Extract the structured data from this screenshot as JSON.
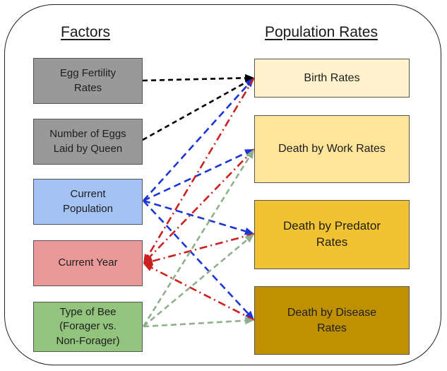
{
  "headings": {
    "factors": "Factors",
    "rates": "Population Rates"
  },
  "factors": [
    {
      "id": "egg",
      "text": "Egg Fertility\nRates",
      "color": "#999999"
    },
    {
      "id": "eggs",
      "text": "Number of Eggs\nLaid by Queen",
      "color": "#999999"
    },
    {
      "id": "pop",
      "text": "Current\nPopulation",
      "color": "#a4c2f4"
    },
    {
      "id": "year",
      "text": "Current Year",
      "color": "#ea9999"
    },
    {
      "id": "type",
      "text": "Type of Bee\n(Forager vs.\nNon-Forager)",
      "color": "#93c47d"
    }
  ],
  "rates": [
    {
      "id": "birth",
      "text": "Birth Rates",
      "color": "#fff2cc"
    },
    {
      "id": "work",
      "text": "Death by Work Rates",
      "color": "#ffe599"
    },
    {
      "id": "pred",
      "text": "Death by Predator\nRates",
      "color": "#f1c232"
    },
    {
      "id": "dis",
      "text": "Death by Disease\nRates",
      "color": "#bf9000"
    }
  ],
  "edge_styles": {
    "black-dashed": "#000000",
    "blue-dashed": "#1c35d6",
    "red-dashdot": "#cc1f1f",
    "green-dashed": "#8fb08a"
  },
  "edges": [
    {
      "from": "egg",
      "to": "birth",
      "style": "black-dashed"
    },
    {
      "from": "eggs",
      "to": "birth",
      "style": "black-dashed"
    },
    {
      "from": "pop",
      "to": "birth",
      "style": "blue-dashed"
    },
    {
      "from": "pop",
      "to": "work",
      "style": "blue-dashed"
    },
    {
      "from": "pop",
      "to": "pred",
      "style": "blue-dashed"
    },
    {
      "from": "pop",
      "to": "dis",
      "style": "blue-dashed"
    },
    {
      "from": "birth",
      "to": "year",
      "style": "red-dashdot"
    },
    {
      "from": "work",
      "to": "year",
      "style": "red-dashdot"
    },
    {
      "from": "pred",
      "to": "year",
      "style": "red-dashdot"
    },
    {
      "from": "dis",
      "to": "year",
      "style": "red-dashdot"
    },
    {
      "from": "type",
      "to": "work",
      "style": "green-dashed"
    },
    {
      "from": "type",
      "to": "pred",
      "style": "green-dashed"
    },
    {
      "from": "type",
      "to": "dis",
      "style": "green-dashed"
    }
  ]
}
